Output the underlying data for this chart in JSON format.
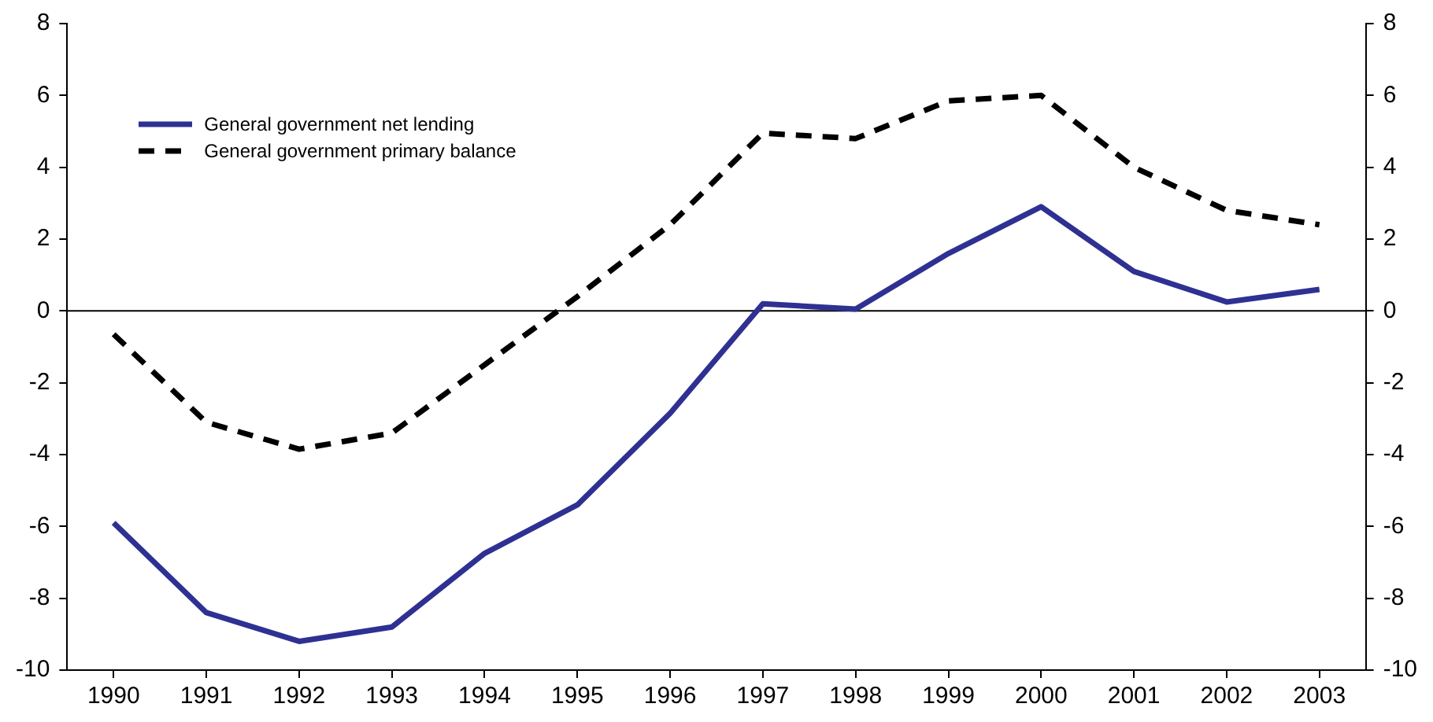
{
  "chart_data": {
    "type": "line",
    "categories": [
      "1990",
      "1991",
      "1992",
      "1993",
      "1994",
      "1995",
      "1996",
      "1997",
      "1998",
      "1999",
      "2000",
      "2001",
      "2002",
      "2003"
    ],
    "series": [
      {
        "name": "General government net lending",
        "color": "#2e3192",
        "line_style": "solid",
        "values": [
          -5.9,
          -8.4,
          -9.2,
          -8.8,
          -6.75,
          -5.4,
          -2.85,
          0.2,
          0.05,
          1.6,
          2.9,
          1.1,
          0.25,
          0.6
        ]
      },
      {
        "name": "General government primary balance",
        "color": "#000000",
        "line_style": "dashed",
        "values": [
          -0.65,
          -3.1,
          -3.85,
          -3.4,
          -1.5,
          0.4,
          2.4,
          4.95,
          4.8,
          5.85,
          6.0,
          4.0,
          2.8,
          2.4
        ]
      }
    ],
    "ylim": [
      -10,
      8
    ],
    "yticks": [
      -10,
      -8,
      -6,
      -4,
      -2,
      0,
      2,
      4,
      6,
      8
    ],
    "y2lim": [
      -10,
      8
    ],
    "y2ticks": [
      -10,
      -8,
      -6,
      -4,
      -2,
      0,
      2,
      4,
      6,
      8
    ],
    "ref_lines": [
      {
        "axis": "y",
        "value": 0,
        "color": "#000000"
      }
    ],
    "grid": false,
    "legend": "top left",
    "marker": "none"
  }
}
